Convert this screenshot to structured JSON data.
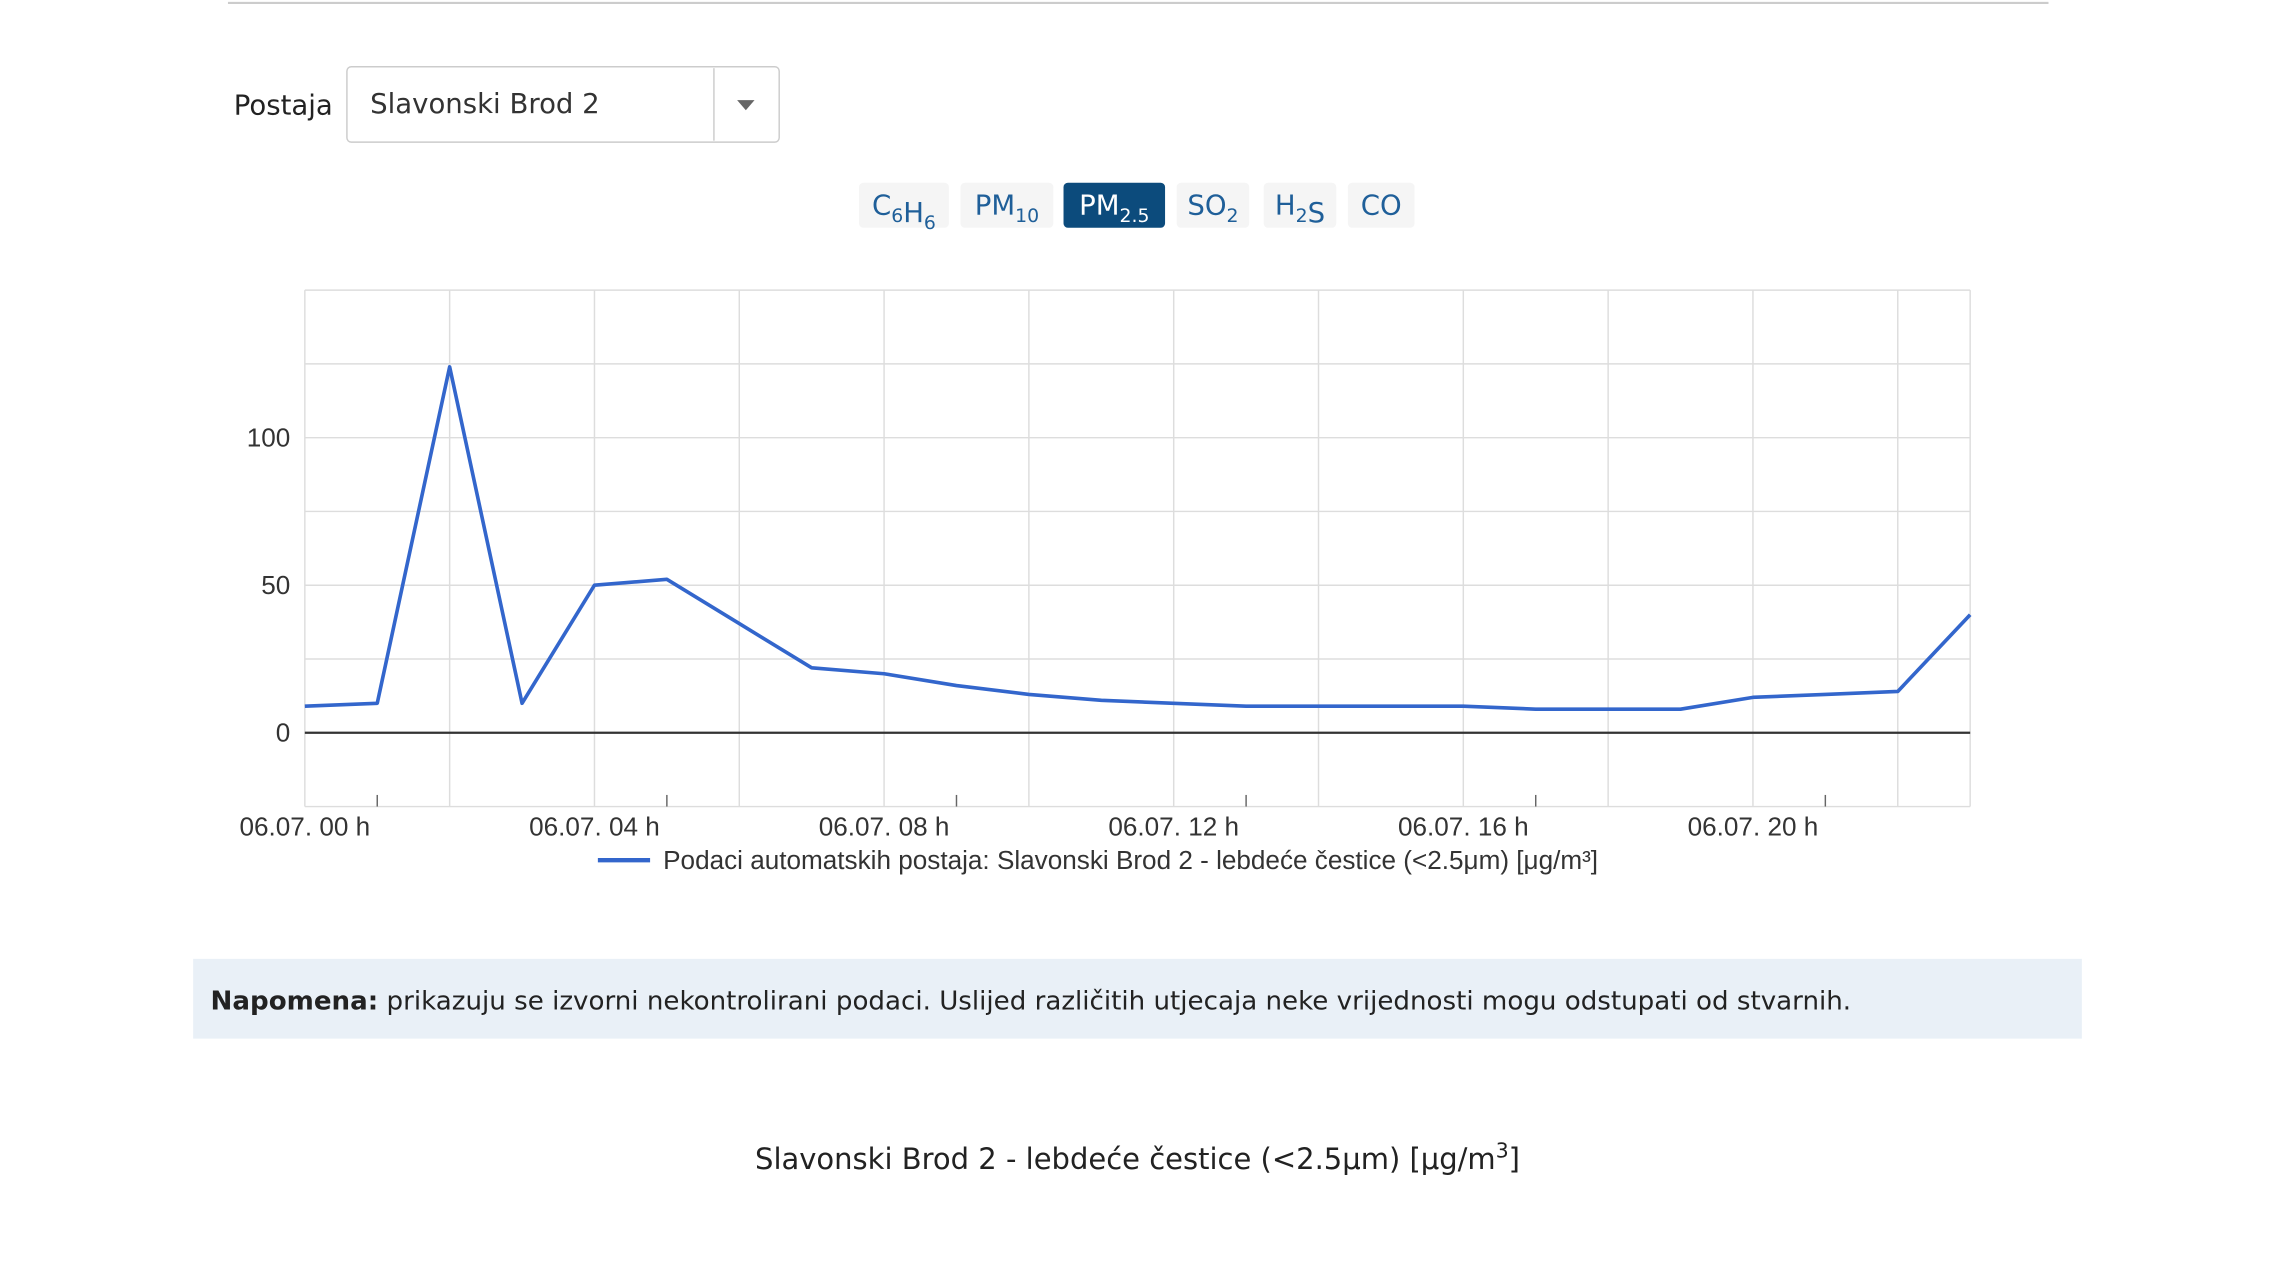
{
  "toolbar": {
    "station_label": "Postaja",
    "station_value": "Slavonski Brod 2",
    "buttons": [
      {
        "parts": [
          [
            "C",
            "6"
          ],
          [
            "H",
            "6"
          ]
        ],
        "active": false
      },
      {
        "parts": [
          [
            "PM",
            "10"
          ]
        ],
        "active": false
      },
      {
        "parts": [
          [
            "PM",
            "2.5"
          ]
        ],
        "active": true
      },
      {
        "parts": [
          [
            "SO",
            "2"
          ]
        ],
        "active": false
      },
      {
        "parts": [
          [
            "H",
            "2"
          ],
          [
            "S"
          ]
        ],
        "active": false
      },
      {
        "parts": [
          [
            "CO"
          ]
        ],
        "active": false
      }
    ]
  },
  "chart_data": {
    "type": "line",
    "categories": [
      "06.07. 00 h",
      null,
      null,
      null,
      "06.07. 04 h",
      null,
      null,
      null,
      "06.07. 08 h",
      null,
      null,
      null,
      "06.07. 12 h",
      null,
      null,
      null,
      "06.07. 16 h",
      null,
      null,
      null,
      "06.07. 20 h",
      null,
      null,
      null
    ],
    "series": [
      {
        "name": "Podaci automatskih postaja: Slavonski Brod 2 - lebdeće čestice (<2.5μm) [μg/m³]",
        "color": "#3366cc",
        "values": [
          9,
          10,
          124,
          10,
          50,
          52,
          37,
          22,
          20,
          16,
          13,
          11,
          10,
          9,
          9,
          9,
          9,
          8,
          8,
          8,
          12,
          13,
          14,
          40
        ]
      }
    ],
    "ylim": [
      -25,
      150
    ],
    "yticks": [
      0,
      50,
      100
    ],
    "minor_yticks": [
      -25,
      25,
      75,
      125,
      150
    ],
    "grid": true,
    "legend": "bottom"
  },
  "note": {
    "label": "Napomena:",
    "text": "prikazuju se izvorni nekontrolirani podaci. Uslijed različitih utjecaja neke vrijednosti mogu odstupati od stvarnih."
  },
  "footer": {
    "title_parts": [
      "Slavonski Brod 2 - lebdeće čestice (<2.5μm) [μg/m",
      "3",
      "]"
    ]
  }
}
